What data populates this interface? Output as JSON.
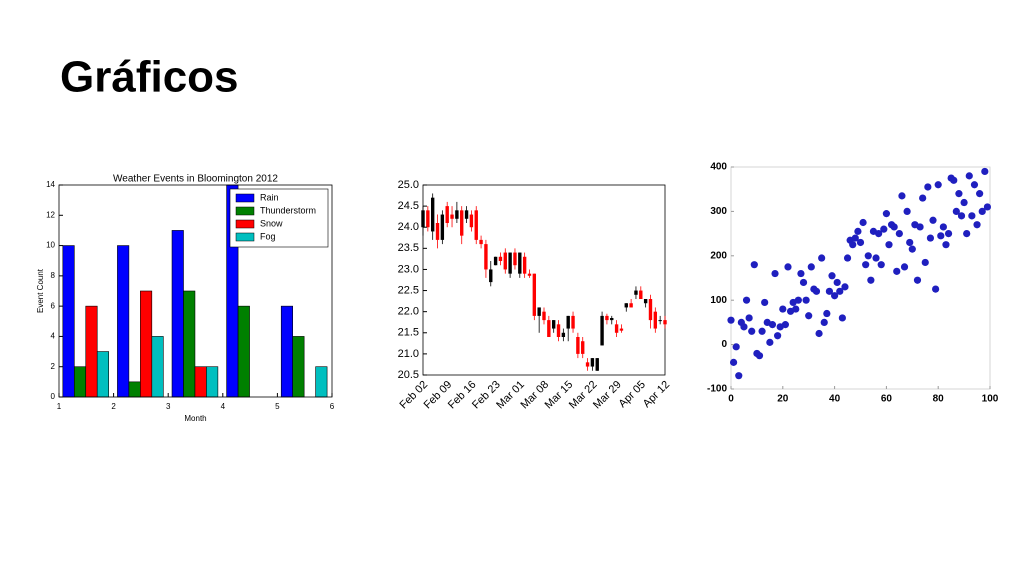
{
  "title": "Gráficos",
  "chart_data": [
    {
      "type": "bar",
      "title": "Weather Events in Bloomington 2012",
      "xlabel": "Month",
      "ylabel": "Event Count",
      "x": [
        1,
        2,
        3,
        4,
        5
      ],
      "series": [
        {
          "name": "Rain",
          "color": "#0000ff",
          "values": [
            10,
            10,
            11,
            14,
            6
          ]
        },
        {
          "name": "Thunderstorm",
          "color": "#008000",
          "values": [
            2,
            1,
            7,
            6,
            4
          ]
        },
        {
          "name": "Snow",
          "color": "#ff0000",
          "values": [
            6,
            7,
            2,
            0,
            0
          ]
        },
        {
          "name": "Fog",
          "color": "#00bfbf",
          "values": [
            3,
            4,
            2,
            0,
            2
          ]
        }
      ],
      "xlim": [
        1,
        6
      ],
      "xticks": [
        1,
        2,
        3,
        4,
        5,
        6
      ],
      "ylim": [
        0,
        14
      ],
      "yticks": [
        0,
        2,
        4,
        6,
        8,
        10,
        12,
        14
      ],
      "legend": "upper right"
    },
    {
      "type": "candlestick",
      "categories": [
        "Feb 02",
        null,
        null,
        null,
        null,
        "Feb 09",
        null,
        null,
        null,
        null,
        "Feb 16",
        null,
        null,
        null,
        null,
        "Feb 23",
        null,
        null,
        null,
        null,
        "Mar 01",
        null,
        null,
        null,
        null,
        "Mar 08",
        null,
        null,
        null,
        null,
        "Mar 15",
        null,
        null,
        null,
        null,
        "Mar 22",
        null,
        null,
        null,
        null,
        "Mar 29",
        null,
        null,
        null,
        null,
        "Apr 05",
        null,
        null,
        null,
        null,
        "Apr 12"
      ],
      "open": [
        24.0,
        24.4,
        23.9,
        24.1,
        23.7,
        24.5,
        24.3,
        24.2,
        24.4,
        24.2,
        24.3,
        24.4,
        23.7,
        23.6,
        22.7,
        23.1,
        23.3,
        23.4,
        22.9,
        23.4,
        22.9,
        23.3,
        22.9,
        22.9,
        21.9,
        22.0,
        21.8,
        21.6,
        21.7,
        21.4,
        21.6,
        21.9,
        21.4,
        21.3,
        20.8,
        20.7,
        20.6,
        21.2,
        21.9,
        21.8,
        21.7,
        21.6,
        22.1,
        22.2,
        22.4,
        22.5,
        22.2,
        22.3,
        22.0,
        21.8,
        21.8
      ],
      "high": [
        24.5,
        24.5,
        24.8,
        24.3,
        24.4,
        24.6,
        24.5,
        24.6,
        24.5,
        24.5,
        24.4,
        24.5,
        23.8,
        23.7,
        23.2,
        23.3,
        23.4,
        23.5,
        23.4,
        23.5,
        23.4,
        23.4,
        23.0,
        22.9,
        22.1,
        22.1,
        21.9,
        21.8,
        21.8,
        21.6,
        21.9,
        22.0,
        21.5,
        21.4,
        20.9,
        20.9,
        20.9,
        22.0,
        21.95,
        21.9,
        21.8,
        21.7,
        22.2,
        22.3,
        22.6,
        22.6,
        22.3,
        22.4,
        22.1,
        21.9,
        21.9
      ],
      "low": [
        23.8,
        23.9,
        23.7,
        23.5,
        23.6,
        24.0,
        24.0,
        24.1,
        23.6,
        24.1,
        23.9,
        23.6,
        23.5,
        22.8,
        22.6,
        23.1,
        23.1,
        22.9,
        22.8,
        23.0,
        22.8,
        22.8,
        22.8,
        21.8,
        21.5,
        21.7,
        21.4,
        21.5,
        21.3,
        21.3,
        21.3,
        21.5,
        20.9,
        20.9,
        20.6,
        20.6,
        20.6,
        21.2,
        21.7,
        21.7,
        21.4,
        21.5,
        22.0,
        22.1,
        22.3,
        22.3,
        22.1,
        21.6,
        21.5,
        21.7,
        21.6
      ],
      "close": [
        24.4,
        24.0,
        24.7,
        23.7,
        24.3,
        24.1,
        24.2,
        24.4,
        23.8,
        24.4,
        24.0,
        23.7,
        23.6,
        23.0,
        23.0,
        23.3,
        23.2,
        23.0,
        23.4,
        23.1,
        23.4,
        22.9,
        22.85,
        21.9,
        22.1,
        21.8,
        21.4,
        21.8,
        21.4,
        21.5,
        21.9,
        21.6,
        21.0,
        21.0,
        20.7,
        20.9,
        20.9,
        21.9,
        21.8,
        21.85,
        21.5,
        21.55,
        22.2,
        22.1,
        22.5,
        22.3,
        22.3,
        21.8,
        21.6,
        21.8,
        21.7
      ],
      "colorup": "#000000",
      "colordown": "#ff0000",
      "ylim": [
        20.5,
        25.0
      ],
      "yticks": [
        {
          "value": 20.5,
          "label": "20.5"
        },
        {
          "value": 21,
          "label": "21.0"
        },
        21.5,
        {
          "value": 22,
          "label": "22.0"
        },
        22.5,
        {
          "value": 23,
          "label": "23.0"
        },
        23.5,
        {
          "value": 24,
          "label": "24.0"
        },
        24.5,
        {
          "value": 25,
          "label": "25.0"
        }
      ]
    },
    {
      "type": "scatter",
      "color": "#1f1fbf",
      "x": [
        0,
        1,
        2,
        3,
        4,
        5,
        6,
        7,
        8,
        9,
        10,
        11,
        12,
        13,
        14,
        15,
        16,
        17,
        18,
        19,
        20,
        21,
        22,
        23,
        24,
        25,
        26,
        27,
        28,
        29,
        30,
        31,
        32,
        33,
        34,
        35,
        36,
        37,
        38,
        39,
        40,
        41,
        42,
        43,
        44,
        45,
        46,
        47,
        48,
        49,
        50,
        51,
        52,
        53,
        54,
        55,
        56,
        57,
        58,
        59,
        60,
        61,
        62,
        63,
        64,
        65,
        66,
        67,
        68,
        69,
        70,
        71,
        72,
        73,
        74,
        75,
        76,
        77,
        78,
        79,
        80,
        81,
        82,
        83,
        84,
        85,
        86,
        87,
        88,
        89,
        90,
        91,
        92,
        93,
        94,
        95,
        96,
        97,
        98,
        99
      ],
      "y": [
        55,
        -40,
        -5,
        -70,
        50,
        40,
        100,
        60,
        30,
        180,
        -20,
        -25,
        30,
        95,
        50,
        5,
        45,
        160,
        20,
        40,
        80,
        45,
        175,
        75,
        95,
        80,
        100,
        160,
        140,
        100,
        65,
        175,
        125,
        120,
        25,
        195,
        50,
        70,
        120,
        155,
        110,
        140,
        120,
        60,
        130,
        195,
        235,
        225,
        240,
        255,
        230,
        275,
        180,
        200,
        145,
        255,
        195,
        250,
        180,
        260,
        295,
        225,
        270,
        265,
        165,
        250,
        335,
        175,
        300,
        230,
        215,
        270,
        145,
        265,
        330,
        185,
        355,
        240,
        280,
        125,
        360,
        245,
        265,
        225,
        250,
        375,
        370,
        300,
        340,
        290,
        320,
        250,
        380,
        290,
        360,
        270,
        340,
        300,
        390,
        310
      ],
      "xlim": [
        0,
        100
      ],
      "xticks": [
        0,
        20,
        40,
        60,
        80,
        100
      ],
      "ylim": [
        -100,
        400
      ],
      "yticks": [
        -100,
        0,
        100,
        200,
        300,
        400
      ]
    }
  ]
}
